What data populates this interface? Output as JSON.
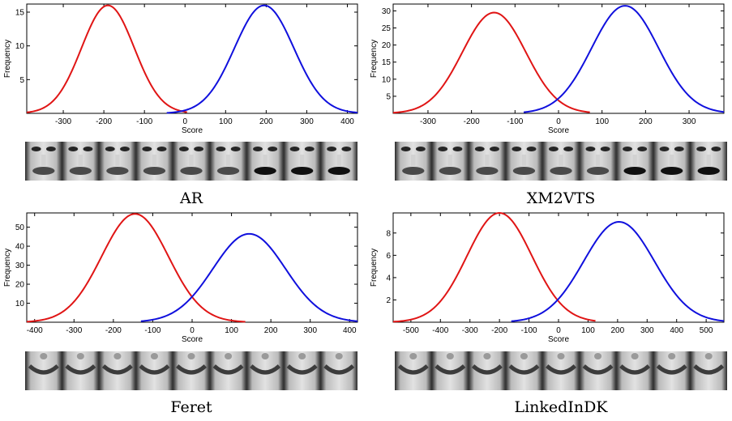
{
  "colors": {
    "series1": "#e01515",
    "series2": "#1010dd"
  },
  "chart_data": [
    {
      "type": "line",
      "caption": "AR",
      "xlabel": "Score",
      "ylabel": "Frequency",
      "xlim": [
        -390,
        425
      ],
      "ylim": [
        0,
        16.2
      ],
      "xticks": [
        -300,
        -200,
        -100,
        0,
        100,
        200,
        300,
        400
      ],
      "yticks": [
        5,
        10,
        15
      ],
      "series": [
        {
          "mean": -190,
          "std": 65,
          "peak": 16,
          "range": [
            -390,
            5
          ]
        },
        {
          "mean": 195,
          "std": 73,
          "peak": 16,
          "range": [
            -45,
            425
          ]
        }
      ]
    },
    {
      "type": "line",
      "caption": "XM2VTS",
      "xlabel": "Score",
      "ylabel": "Frequency",
      "xlim": [
        -380,
        380
      ],
      "ylim": [
        0,
        32
      ],
      "xticks": [
        -300,
        -200,
        -100,
        0,
        100,
        200,
        300
      ],
      "yticks": [
        5,
        10,
        15,
        20,
        25,
        30
      ],
      "series": [
        {
          "mean": -148,
          "std": 73,
          "peak": 29.5,
          "range": [
            -380,
            72
          ]
        },
        {
          "mean": 153,
          "std": 77,
          "peak": 31.5,
          "range": [
            -80,
            380
          ]
        }
      ]
    },
    {
      "type": "line",
      "caption": "Feret",
      "xlabel": "Score",
      "ylabel": "Frequency",
      "xlim": [
        -420,
        420
      ],
      "ylim": [
        0,
        57.5
      ],
      "xticks": [
        -400,
        -300,
        -200,
        -100,
        0,
        100,
        200,
        300,
        400
      ],
      "yticks": [
        10,
        20,
        30,
        40,
        50
      ],
      "series": [
        {
          "mean": -145,
          "std": 85,
          "peak": 57,
          "range": [
            -420,
            135
          ]
        },
        {
          "mean": 145,
          "std": 92,
          "peak": 46.5,
          "range": [
            -130,
            420
          ]
        }
      ]
    },
    {
      "type": "line",
      "caption": "LinkedInDK",
      "xlabel": "Score",
      "ylabel": "Frequency",
      "xlim": [
        -560,
        560
      ],
      "ylim": [
        0,
        9.8
      ],
      "xticks": [
        -500,
        -400,
        -300,
        -200,
        -100,
        0,
        100,
        200,
        300,
        400,
        500
      ],
      "yticks": [
        2,
        4,
        6,
        8
      ],
      "series": [
        {
          "mean": -200,
          "std": 110,
          "peak": 9.8,
          "range": [
            -560,
            125
          ]
        },
        {
          "mean": 205,
          "std": 120,
          "peak": 9,
          "range": [
            -160,
            560
          ]
        }
      ]
    }
  ]
}
